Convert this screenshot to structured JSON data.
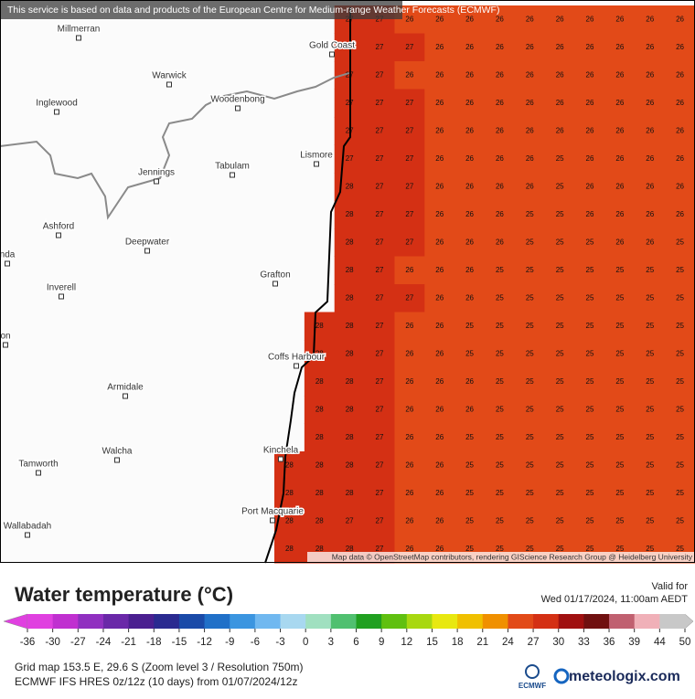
{
  "banner": "This service is based on data and products of the European Centre for Medium-range Weather Forecasts (ECMWF)",
  "map": {
    "attribution": "Map data © OpenStreetMap contributors, rendering GIScience Research Group @ Heidelberg University",
    "places": [
      "Millmerran",
      "Gold Coast",
      "Warwick",
      "Inglewood",
      "Woodenbong",
      "Lismore",
      "Jennings",
      "Tabulam",
      "Ashford",
      "Deepwater",
      "nda",
      "Grafton",
      "Inverell",
      "on",
      "Coffs Harbour",
      "Armidale",
      "Walcha",
      "Kinchela",
      "Tamworth",
      "Port Macquarie",
      "Wallabadah"
    ],
    "grid": [
      [
        null,
        null,
        27,
        27,
        26,
        26,
        26,
        26,
        26,
        26,
        26,
        26,
        26,
        26
      ],
      [
        null,
        null,
        27,
        27,
        27,
        26,
        26,
        26,
        26,
        26,
        26,
        26,
        26,
        26
      ],
      [
        null,
        null,
        27,
        27,
        26,
        26,
        26,
        26,
        26,
        26,
        26,
        26,
        26,
        26
      ],
      [
        null,
        null,
        27,
        27,
        27,
        26,
        26,
        26,
        26,
        26,
        26,
        26,
        26,
        26
      ],
      [
        null,
        null,
        27,
        27,
        27,
        26,
        26,
        26,
        26,
        26,
        26,
        26,
        26,
        26
      ],
      [
        null,
        null,
        27,
        27,
        27,
        26,
        26,
        26,
        26,
        25,
        26,
        26,
        26,
        26
      ],
      [
        null,
        null,
        28,
        27,
        27,
        26,
        26,
        26,
        26,
        25,
        26,
        26,
        26,
        26
      ],
      [
        null,
        null,
        28,
        27,
        27,
        26,
        26,
        26,
        25,
        25,
        26,
        26,
        26,
        26
      ],
      [
        null,
        null,
        28,
        27,
        27,
        26,
        26,
        26,
        25,
        25,
        25,
        26,
        26,
        25
      ],
      [
        null,
        null,
        28,
        27,
        26,
        26,
        26,
        25,
        25,
        25,
        25,
        25,
        25,
        25
      ],
      [
        null,
        null,
        28,
        27,
        27,
        26,
        26,
        25,
        25,
        25,
        25,
        25,
        25,
        25
      ],
      [
        null,
        28,
        28,
        27,
        26,
        26,
        25,
        25,
        25,
        25,
        25,
        25,
        25,
        25
      ],
      [
        null,
        28,
        28,
        27,
        26,
        26,
        25,
        25,
        25,
        25,
        25,
        25,
        25,
        25
      ],
      [
        null,
        28,
        28,
        27,
        26,
        26,
        26,
        25,
        25,
        25,
        25,
        25,
        25,
        25
      ],
      [
        null,
        28,
        28,
        27,
        26,
        26,
        26,
        25,
        25,
        25,
        25,
        25,
        25,
        25
      ],
      [
        null,
        28,
        28,
        27,
        26,
        26,
        25,
        25,
        25,
        25,
        25,
        25,
        25,
        25
      ],
      [
        28,
        28,
        28,
        27,
        26,
        26,
        25,
        25,
        25,
        25,
        25,
        25,
        25,
        25
      ],
      [
        28,
        28,
        28,
        27,
        26,
        26,
        25,
        25,
        25,
        25,
        25,
        25,
        25,
        25
      ],
      [
        28,
        28,
        27,
        27,
        26,
        26,
        25,
        25,
        25,
        25,
        25,
        25,
        25,
        25
      ],
      [
        28,
        28,
        28,
        27,
        26,
        26,
        25,
        25,
        25,
        25,
        25,
        25,
        25,
        25
      ]
    ]
  },
  "legend": {
    "title": "Water temperature (°C)",
    "valid_label": "Valid for",
    "valid_time": "Wed 01/17/2024, 11:00am AEDT",
    "colorbar": {
      "ticks": [
        -36,
        -30,
        -27,
        -24,
        -21,
        -18,
        -15,
        -12,
        -9,
        -6,
        -3,
        0,
        3,
        6,
        9,
        12,
        15,
        18,
        21,
        24,
        27,
        30,
        33,
        36,
        39,
        44,
        50
      ],
      "colors": [
        "#e040e0",
        "#c030d0",
        "#9030c0",
        "#6a28a8",
        "#4a1f90",
        "#2a2a90",
        "#1a4aa8",
        "#2070c8",
        "#3b95e0",
        "#70b8f0",
        "#a8d8f0",
        "#a0e0c0",
        "#50c070",
        "#20a020",
        "#60c010",
        "#a8d810",
        "#e8e810",
        "#f0c000",
        "#f09000",
        "#e24a18",
        "#d43014",
        "#a01010",
        "#701010",
        "#c06070",
        "#f0b0b8",
        "#c8c8c8"
      ]
    }
  },
  "footer": {
    "grid_info": "Grid map 153.5 E, 29.6 S (Zoom level 3 / Resolution 750m)",
    "model_info": "ECMWF IFS HRES 0z/12z (10 days) from 01/07/2024/12z",
    "ecmwf_logo": "ECMWF",
    "brand": "meteologix.com"
  }
}
